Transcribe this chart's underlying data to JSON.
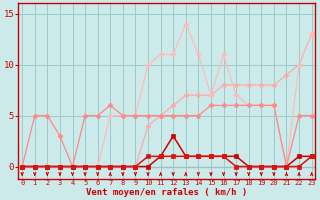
{
  "x": [
    0,
    1,
    2,
    3,
    4,
    5,
    6,
    7,
    8,
    9,
    10,
    11,
    12,
    13,
    14,
    15,
    16,
    17,
    18,
    19,
    20,
    21,
    22,
    23
  ],
  "line_diag_y": [
    0,
    0,
    0,
    0,
    0,
    0,
    0,
    0,
    0,
    0,
    4,
    5,
    6,
    7,
    7,
    7,
    8,
    8,
    8,
    8,
    8,
    9,
    10,
    13
  ],
  "line_flat_y": [
    0,
    5,
    5,
    3,
    0,
    5,
    5,
    6,
    5,
    5,
    5,
    5,
    5,
    5,
    5,
    6,
    6,
    6,
    6,
    6,
    6,
    0,
    5,
    5
  ],
  "line_jagged_y": [
    0,
    0,
    0,
    0,
    0,
    0,
    0,
    5,
    5,
    5,
    10,
    11,
    11,
    14,
    11,
    7,
    11,
    7,
    6,
    6,
    6,
    0,
    10,
    13
  ],
  "line_dark1_y": [
    0,
    0,
    0,
    0,
    0,
    0,
    0,
    0,
    0,
    0,
    0,
    1,
    3,
    1,
    1,
    1,
    1,
    1,
    0,
    0,
    0,
    0,
    1,
    1
  ],
  "line_dark2_y": [
    0,
    0,
    0,
    0,
    0,
    0,
    0,
    0,
    0,
    0,
    1,
    1,
    1,
    1,
    1,
    1,
    1,
    0,
    0,
    0,
    0,
    0,
    0,
    1
  ],
  "arrows_down": [
    0,
    1,
    2,
    3,
    4,
    5,
    6,
    8,
    9,
    10,
    12,
    14,
    15,
    16,
    17,
    18,
    19,
    20
  ],
  "arrows_up": [
    7,
    11,
    13,
    21,
    22,
    23
  ],
  "bg_color": "#cceaea",
  "grid_color": "#99cccc",
  "line_diag_color": "#ffaaaa",
  "line_flat_color": "#ff8888",
  "line_jagged_color": "#ffbbbb",
  "line_dark1_color": "#cc0000",
  "line_dark2_color": "#dd1111",
  "arrow_color": "#cc0000",
  "axis_color": "#cc0000",
  "tick_color": "#cc0000",
  "xlabel": "Vent moyen/en rafales ( km/h )",
  "xlabel_color": "#cc0000",
  "yticks": [
    0,
    5,
    10,
    15
  ],
  "ylim": [
    -1.2,
    16
  ],
  "xlim": [
    -0.3,
    23.3
  ]
}
